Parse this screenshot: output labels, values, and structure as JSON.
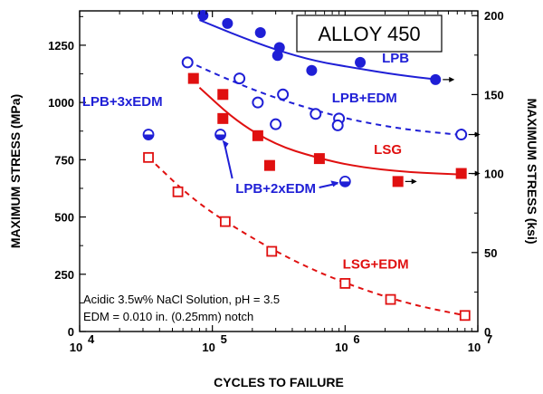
{
  "chart_data": {
    "type": "scatter",
    "title": "ALLOY 450",
    "xlabel": "CYCLES TO FAILURE",
    "ylabel": "MAXIMUM STRESS (MPa)",
    "y2label": "MAXIMUM STRESS (ksi)",
    "xscale": "log",
    "xlim": [
      10000,
      10000000
    ],
    "ylim": [
      0,
      1400
    ],
    "y2lim": [
      0,
      203
    ],
    "x_ticks": [
      {
        "v": 10000,
        "base": "10",
        "exp": "4"
      },
      {
        "v": 100000,
        "base": "10",
        "exp": "5"
      },
      {
        "v": 1000000,
        "base": "10",
        "exp": "6"
      },
      {
        "v": 10000000,
        "base": "10",
        "exp": "7"
      }
    ],
    "y_ticks": [
      0,
      250,
      500,
      750,
      1000,
      1250
    ],
    "y2_ticks": [
      0,
      50,
      100,
      150,
      200
    ],
    "series": [
      {
        "name": "LPB",
        "color": "#1f1fd6",
        "marker": "filled-circle",
        "points": [
          [
            85000,
            1380
          ],
          [
            130000,
            1345
          ],
          [
            230000,
            1305
          ],
          [
            320000,
            1240
          ],
          [
            310000,
            1205
          ],
          [
            560000,
            1140
          ],
          [
            1300000,
            1175
          ],
          [
            4800000,
            1100
          ]
        ],
        "runout": [
          4800000
        ],
        "fit": [
          [
            80000,
            1360
          ],
          [
            150000,
            1295
          ],
          [
            300000,
            1230
          ],
          [
            600000,
            1180
          ],
          [
            1200000,
            1150
          ],
          [
            2500000,
            1120
          ],
          [
            5000000,
            1100
          ]
        ],
        "fit_style": "solid"
      },
      {
        "name": "LPB+EDM",
        "color": "#1f1fd6",
        "marker": "open-circle",
        "points": [
          [
            65000,
            1175
          ],
          [
            160000,
            1105
          ],
          [
            220000,
            1000
          ],
          [
            340000,
            1035
          ],
          [
            300000,
            905
          ],
          [
            600000,
            950
          ],
          [
            900000,
            930
          ],
          [
            880000,
            900
          ],
          [
            7500000,
            860
          ]
        ],
        "runout": [
          7500000
        ],
        "fit": [
          [
            65000,
            1180
          ],
          [
            120000,
            1110
          ],
          [
            250000,
            1035
          ],
          [
            600000,
            965
          ],
          [
            1200000,
            920
          ],
          [
            3000000,
            880
          ],
          [
            7000000,
            860
          ]
        ],
        "fit_style": "dashed"
      },
      {
        "name": "LSG",
        "color": "#e01010",
        "marker": "filled-square",
        "points": [
          [
            72000,
            1105
          ],
          [
            120000,
            1035
          ],
          [
            120000,
            930
          ],
          [
            220000,
            855
          ],
          [
            270000,
            725
          ],
          [
            640000,
            755
          ],
          [
            2500000,
            655
          ],
          [
            7500000,
            690
          ]
        ],
        "runout": [
          2500000,
          7500000
        ],
        "fit": [
          [
            80000,
            1065
          ],
          [
            150000,
            920
          ],
          [
            300000,
            815
          ],
          [
            600000,
            760
          ],
          [
            1200000,
            720
          ],
          [
            3000000,
            695
          ],
          [
            8000000,
            685
          ]
        ],
        "fit_style": "solid"
      },
      {
        "name": "LSG+EDM",
        "color": "#e01010",
        "marker": "open-square",
        "points": [
          [
            33000,
            760
          ],
          [
            55000,
            610
          ],
          [
            125000,
            480
          ],
          [
            280000,
            350
          ],
          [
            1000000,
            210
          ],
          [
            2200000,
            140
          ],
          [
            8000000,
            70
          ]
        ],
        "fit": [
          [
            33000,
            760
          ],
          [
            70000,
            580
          ],
          [
            150000,
            450
          ],
          [
            400000,
            310
          ],
          [
            1000000,
            210
          ],
          [
            3000000,
            120
          ],
          [
            8000000,
            70
          ]
        ],
        "fit_style": "dashed"
      },
      {
        "name": "LPB+3xEDM",
        "color": "#1f1fd6",
        "marker": "half-circle",
        "points": [
          [
            33000,
            860
          ]
        ]
      },
      {
        "name": "LPB+2xEDM",
        "color": "#1f1fd6",
        "marker": "half-circle",
        "points": [
          [
            115000,
            860
          ],
          [
            1000000,
            655
          ]
        ]
      }
    ],
    "annotations": [
      {
        "text": "LPB",
        "color": "#1f1fd6",
        "x": 2400000,
        "y": 1175
      },
      {
        "text": "LPB+EDM",
        "color": "#1f1fd6",
        "x": 1400000,
        "y": 1000
      },
      {
        "text": "LPB+3xEDM",
        "color": "#1f1fd6",
        "x": 21000,
        "y": 985
      },
      {
        "text": "LSG",
        "color": "#e01010",
        "x": 2100000,
        "y": 775
      },
      {
        "text": "LPB+2xEDM",
        "color": "#1f1fd6",
        "x": 300000,
        "y": 605
      },
      {
        "text": "LSG+EDM",
        "color": "#e01010",
        "x": 1700000,
        "y": 275
      }
    ],
    "notes": [
      "Acidic 3.5w% NaCl Solution, pH = 3.5",
      "EDM = 0.010 in. (0.25mm) notch"
    ]
  }
}
